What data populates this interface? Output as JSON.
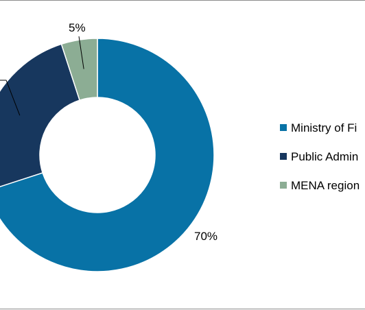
{
  "chart_data": {
    "type": "pie",
    "variant": "donut",
    "categories": [
      "Ministry of Fi",
      "Public Admin",
      "MENA region"
    ],
    "values": [
      70,
      25,
      5
    ],
    "data_labels": [
      "70%",
      "",
      "5%"
    ],
    "colors": [
      "#0872A6",
      "#17375E",
      "#8CAD94"
    ],
    "legend_placement": "right",
    "title": ""
  }
}
